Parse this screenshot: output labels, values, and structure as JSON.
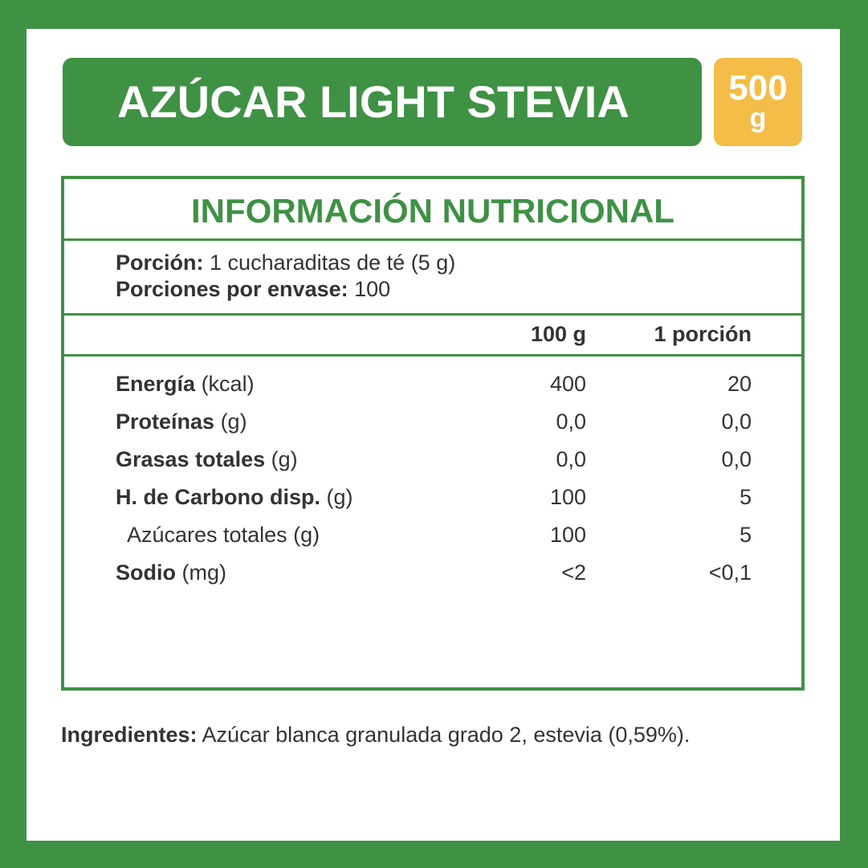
{
  "product": {
    "name": "AZÚCAR LIGHT STEVIA",
    "weight_value": "500",
    "weight_unit": "g"
  },
  "nutrition": {
    "title": "INFORMACIÓN NUTRICIONAL",
    "serving_label": "Porción:",
    "serving_value": "1 cucharaditas de té (5 g)",
    "servings_label": "Porciones por envase:",
    "servings_value": "100",
    "columns": [
      "100 g",
      "1 porción"
    ],
    "rows": [
      {
        "name": "Energía",
        "unit": "(kcal)",
        "per100": "400",
        "perServing": "20"
      },
      {
        "name": "Proteínas",
        "unit": "(g)",
        "per100": "0,0",
        "perServing": "0,0"
      },
      {
        "name": "Grasas totales",
        "unit": "(g)",
        "per100": "0,0",
        "perServing": "0,0"
      },
      {
        "name": "H. de Carbono disp.",
        "unit": "(g)",
        "per100": "100",
        "perServing": "5"
      },
      {
        "name": "",
        "unit": "Azúcares totales (g)",
        "per100": "100",
        "perServing": "5"
      },
      {
        "name": "Sodio",
        "unit": "(mg)",
        "per100": "<2",
        "perServing": "<0,1"
      }
    ]
  },
  "ingredients": {
    "label": "Ingredientes:",
    "text": "Azúcar blanca granulada grado 2, estevia (0,59%)."
  },
  "colors": {
    "green": "#3f9144",
    "badge": "#f4bd48",
    "text": "#333333"
  }
}
